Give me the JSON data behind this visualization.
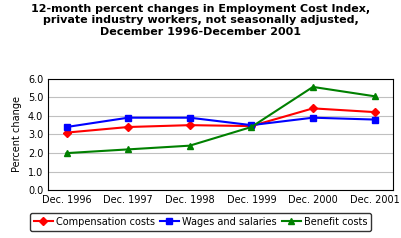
{
  "title": "12-month percent changes in Employment Cost Index,\nprivate industry workers, not seasonally adjusted,\nDecember 1996-December 2001",
  "ylabel": "Percent change",
  "x_labels": [
    "Dec. 1996",
    "Dec. 1997",
    "Dec. 1998",
    "Dec. 1999",
    "Dec. 2000",
    "Dec. 2001"
  ],
  "x_values": [
    0,
    1,
    2,
    3,
    4,
    5
  ],
  "compensation": [
    3.1,
    3.4,
    3.5,
    3.45,
    4.4,
    4.2
  ],
  "wages": [
    3.4,
    3.9,
    3.9,
    3.5,
    3.9,
    3.8
  ],
  "benefits": [
    2.0,
    2.2,
    2.4,
    3.4,
    5.55,
    5.05
  ],
  "comp_color": "#ff0000",
  "wages_color": "#0000ff",
  "benefits_color": "#008000",
  "ylim": [
    0.0,
    6.0
  ],
  "yticks": [
    0.0,
    1.0,
    2.0,
    3.0,
    4.0,
    5.0,
    6.0
  ],
  "title_fontsize": 8,
  "axis_label_fontsize": 7,
  "tick_fontsize": 7,
  "legend_fontsize": 7,
  "bg_color": "#ffffff"
}
